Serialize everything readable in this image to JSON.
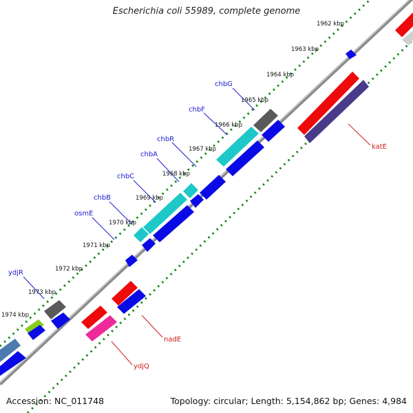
{
  "title": "Escherichia coli 55989, complete genome",
  "footer": {
    "accession": "Accession: NC_011748",
    "topology": "Topology: circular;",
    "length": "Length: 5,154,862 bp;",
    "genes": "Genes: 4,984"
  },
  "kbp_ticks": [
    "1962 kbp",
    "1963 kbp",
    "1964 kbp",
    "1965 kbp",
    "1966 kbp",
    "1967 kbp",
    "1968 kbp",
    "1969 kbp",
    "1970 kbp",
    "1971 kbp",
    "1972 kbp",
    "1973 kbp",
    "1974 kbp"
  ],
  "gene_labels": [
    {
      "id": "chbG",
      "text": "chbG",
      "color": "#1a1acc"
    },
    {
      "id": "chbF",
      "text": "chbF",
      "color": "#1a1acc"
    },
    {
      "id": "chbR",
      "text": "chbR",
      "color": "#1a1acc"
    },
    {
      "id": "chbA",
      "text": "chbA",
      "color": "#1a1acc"
    },
    {
      "id": "chbC",
      "text": "chbC",
      "color": "#1a1acc"
    },
    {
      "id": "chbB",
      "text": "chbB",
      "color": "#1a1acc"
    },
    {
      "id": "osmE",
      "text": "osmE",
      "color": "#1a1acc"
    },
    {
      "id": "ydjR",
      "text": "ydjR",
      "color": "#1a1acc"
    },
    {
      "id": "katE",
      "text": "katE",
      "color": "#cc1a1a"
    },
    {
      "id": "nadE",
      "text": "nadE",
      "color": "#cc1a1a"
    },
    {
      "id": "ydjQ",
      "text": "ydjQ",
      "color": "#cc1a1a"
    }
  ],
  "colors": {
    "backbone": "#7a7a7a",
    "tick": "#1a8a1a",
    "blue": "#0a0ae6",
    "cyan": "#1ec8c8",
    "gray": "#606060",
    "red": "#ee0a0a",
    "purple": "#4a3a8a",
    "pink": "#ee2a9a",
    "steel": "#4a7ab0",
    "lime": "#88cc22"
  }
}
